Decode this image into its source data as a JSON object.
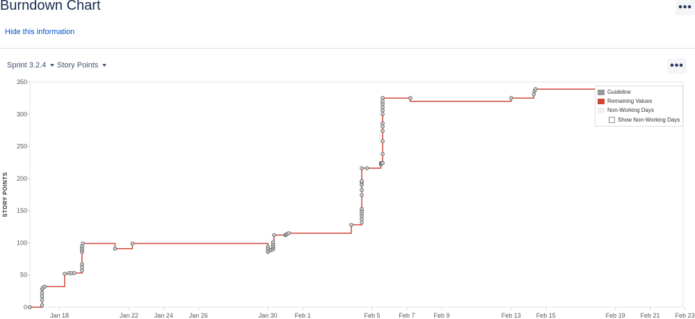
{
  "header": {
    "title": "Burndown Chart",
    "more_label": "•••",
    "hide_link": "Hide this information"
  },
  "controls": {
    "sprint_label": "Sprint 3.2.4",
    "estimate_label": "Story Points",
    "more_label": "•••"
  },
  "legend": {
    "guideline": "Guideline",
    "remaining": "Remaining Values",
    "non_working": "Non-Working Days",
    "show_non_working": "Show Non-Working Days"
  },
  "colors": {
    "remaining_line": "#d04437",
    "guideline": "#999999",
    "marker_fill": "#cccccc",
    "marker_stroke": "#555555",
    "non_working": "#f0f0f0"
  },
  "chart_data": {
    "type": "line",
    "title": "",
    "xlabel": "",
    "ylabel": "STORY POINTS",
    "ylim": [
      0,
      350
    ],
    "y_ticks": [
      "0",
      "50",
      "100",
      "150",
      "200",
      "250",
      "300",
      "350"
    ],
    "x_range_days": [
      16.3,
      53.9
    ],
    "x_tick_labels": [
      "Jan 18",
      "Jan 22",
      "Jan 24",
      "Jan 26",
      "Jan 30",
      "Feb 1",
      "Feb 5",
      "Feb 7",
      "Feb 9",
      "Feb 13",
      "Feb 15",
      "Feb 19",
      "Feb 21",
      "Feb 23"
    ],
    "x_tick_days": [
      18,
      22,
      24,
      26,
      30,
      32,
      36,
      38,
      40,
      44,
      46,
      50,
      52,
      54
    ],
    "grid": false,
    "legend_position": "top-right",
    "series": [
      {
        "name": "Remaining Values",
        "step": true,
        "points": [
          [
            16.3,
            0
          ],
          [
            17.0,
            0
          ],
          [
            17.0,
            3
          ],
          [
            17.0,
            11
          ],
          [
            17.0,
            17
          ],
          [
            17.0,
            22
          ],
          [
            17.0,
            28
          ],
          [
            17.05,
            30
          ],
          [
            17.15,
            32
          ],
          [
            18.3,
            32
          ],
          [
            18.3,
            52
          ],
          [
            18.55,
            53
          ],
          [
            18.7,
            53
          ],
          [
            18.85,
            53
          ],
          [
            19.3,
            53
          ],
          [
            19.3,
            57
          ],
          [
            19.3,
            62
          ],
          [
            19.3,
            67
          ],
          [
            19.3,
            86
          ],
          [
            19.3,
            89
          ],
          [
            19.3,
            92
          ],
          [
            19.3,
            95
          ],
          [
            19.35,
            99
          ],
          [
            21.2,
            99
          ],
          [
            21.2,
            91
          ],
          [
            22.2,
            91
          ],
          [
            22.2,
            99
          ],
          [
            30.0,
            99
          ],
          [
            30.0,
            94
          ],
          [
            30.0,
            90
          ],
          [
            30.0,
            86
          ],
          [
            30.1,
            88
          ],
          [
            30.2,
            89
          ],
          [
            30.3,
            90
          ],
          [
            30.3,
            93
          ],
          [
            30.3,
            95
          ],
          [
            30.3,
            98
          ],
          [
            30.3,
            101
          ],
          [
            30.35,
            112
          ],
          [
            31.0,
            112
          ],
          [
            31.05,
            113
          ],
          [
            31.1,
            114
          ],
          [
            31.2,
            115
          ],
          [
            34.8,
            115
          ],
          [
            34.8,
            128
          ],
          [
            35.4,
            128
          ],
          [
            35.4,
            132
          ],
          [
            35.4,
            137
          ],
          [
            35.4,
            142
          ],
          [
            35.4,
            146
          ],
          [
            35.4,
            150
          ],
          [
            35.4,
            153
          ],
          [
            35.4,
            174
          ],
          [
            35.4,
            182
          ],
          [
            35.4,
            190
          ],
          [
            35.4,
            194
          ],
          [
            35.4,
            196
          ],
          [
            35.4,
            216
          ],
          [
            35.7,
            216
          ],
          [
            36.5,
            216
          ],
          [
            36.5,
            222
          ],
          [
            36.5,
            224
          ],
          [
            36.55,
            224
          ],
          [
            36.6,
            224
          ],
          [
            36.6,
            238
          ],
          [
            36.6,
            258
          ],
          [
            36.6,
            274
          ],
          [
            36.6,
            281
          ],
          [
            36.6,
            286
          ],
          [
            36.6,
            300
          ],
          [
            36.6,
            306
          ],
          [
            36.6,
            311
          ],
          [
            36.6,
            316
          ],
          [
            36.6,
            320
          ],
          [
            36.6,
            325
          ],
          [
            38.2,
            325
          ],
          [
            38.2,
            320
          ],
          [
            44.0,
            320
          ],
          [
            44.0,
            325
          ],
          [
            45.3,
            325
          ],
          [
            45.3,
            331
          ],
          [
            45.35,
            336
          ],
          [
            45.4,
            339
          ],
          [
            53.9,
            339
          ]
        ],
        "markers": [
          [
            16.3,
            0
          ],
          [
            17.0,
            3
          ],
          [
            17.0,
            11
          ],
          [
            17.0,
            17
          ],
          [
            17.0,
            22
          ],
          [
            17.0,
            28
          ],
          [
            17.05,
            30
          ],
          [
            17.15,
            32
          ],
          [
            18.3,
            52
          ],
          [
            18.55,
            53
          ],
          [
            18.7,
            53
          ],
          [
            18.85,
            53
          ],
          [
            19.3,
            57
          ],
          [
            19.3,
            62
          ],
          [
            19.3,
            67
          ],
          [
            19.3,
            86
          ],
          [
            19.3,
            89
          ],
          [
            19.3,
            92
          ],
          [
            19.3,
            95
          ],
          [
            19.35,
            99
          ],
          [
            21.2,
            91
          ],
          [
            22.2,
            99
          ],
          [
            30.0,
            94
          ],
          [
            30.0,
            90
          ],
          [
            30.0,
            86
          ],
          [
            30.1,
            88
          ],
          [
            30.2,
            89
          ],
          [
            30.3,
            90
          ],
          [
            30.3,
            93
          ],
          [
            30.3,
            95
          ],
          [
            30.3,
            98
          ],
          [
            30.3,
            101
          ],
          [
            30.35,
            112
          ],
          [
            31.0,
            112
          ],
          [
            31.05,
            113
          ],
          [
            31.1,
            114
          ],
          [
            31.2,
            115
          ],
          [
            34.8,
            128
          ],
          [
            35.4,
            132
          ],
          [
            35.4,
            137
          ],
          [
            35.4,
            142
          ],
          [
            35.4,
            146
          ],
          [
            35.4,
            150
          ],
          [
            35.4,
            153
          ],
          [
            35.4,
            174
          ],
          [
            35.4,
            182
          ],
          [
            35.4,
            190
          ],
          [
            35.4,
            194
          ],
          [
            35.4,
            196
          ],
          [
            35.4,
            216
          ],
          [
            35.7,
            216
          ],
          [
            36.5,
            222
          ],
          [
            36.5,
            224
          ],
          [
            36.55,
            224
          ],
          [
            36.6,
            224
          ],
          [
            36.6,
            238
          ],
          [
            36.6,
            258
          ],
          [
            36.6,
            274
          ],
          [
            36.6,
            281
          ],
          [
            36.6,
            286
          ],
          [
            36.6,
            300
          ],
          [
            36.6,
            306
          ],
          [
            36.6,
            311
          ],
          [
            36.6,
            316
          ],
          [
            36.6,
            320
          ],
          [
            36.6,
            325
          ],
          [
            38.2,
            325
          ],
          [
            44.0,
            325
          ],
          [
            45.3,
            331
          ],
          [
            45.35,
            336
          ],
          [
            45.4,
            339
          ]
        ]
      }
    ]
  }
}
